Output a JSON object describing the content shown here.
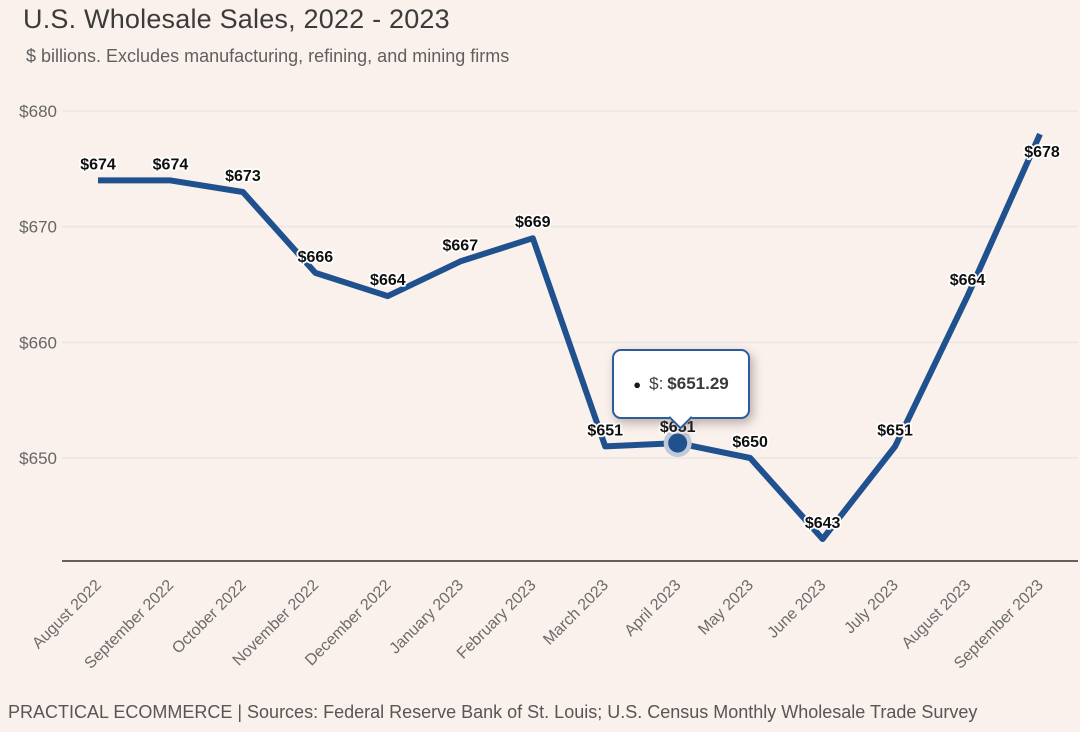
{
  "header": {
    "title": "U.S. Wholesale Sales, 2022 - 2023",
    "subtitle": "$ billions. Excludes manufacturing, refining, and mining firms"
  },
  "chart_data": {
    "type": "line",
    "title": "U.S. Wholesale Sales, 2022 - 2023",
    "unit_note": "$ billions. Excludes manufacturing, refining, and mining firms",
    "categories": [
      "August 2022",
      "September 2022",
      "October 2022",
      "November 2022",
      "December 2022",
      "January 2023",
      "February 2023",
      "March 2023",
      "April 2023",
      "May 2023",
      "June 2023",
      "July 2023",
      "August 2023",
      "September 2023"
    ],
    "values": [
      674,
      674,
      673,
      666,
      664,
      667,
      669,
      651,
      651.29,
      650,
      643,
      651,
      664,
      678
    ],
    "point_labels": [
      "$674",
      "$674",
      "$673",
      "$666",
      "$664",
      "$667",
      "$669",
      "$651",
      "$651",
      "$650",
      "$643",
      "$651",
      "$664",
      "$678"
    ],
    "y_ticks": [
      650,
      660,
      670,
      680
    ],
    "y_tick_labels": [
      "$650",
      "$660",
      "$670",
      "$680"
    ],
    "ylim": [
      641,
      680
    ],
    "grid": "horizontal",
    "legend": "none",
    "line_color": "#1f518f",
    "grid_color": "#ebe5e2",
    "axis_color": "#2f2f2f",
    "background_color": "#faf0ec",
    "label_color": "#0f0f0f",
    "tick_label_color": "#6b6b6b",
    "highlight": {
      "index": 8,
      "category": "April 2023",
      "value": 651.29,
      "halo_color": "#c2cad9"
    },
    "label_offsets": {
      "13": [
        2,
        34
      ]
    }
  },
  "tooltip": {
    "bullet": "●",
    "label": "$:",
    "value": "$651.29"
  },
  "footer": {
    "text": "PRACTICAL ECOMMERCE | Sources: Federal Reserve Bank of St. Louis; U.S. Census Monthly Wholesale Trade Survey"
  }
}
